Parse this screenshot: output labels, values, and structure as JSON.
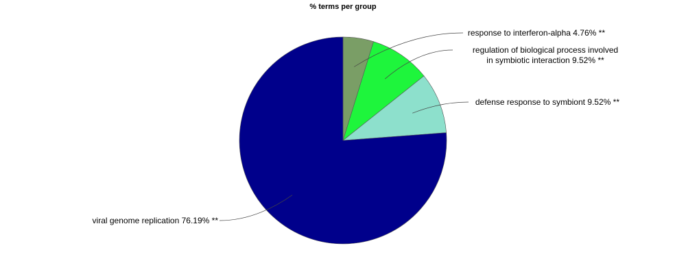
{
  "chart_data": {
    "type": "pie",
    "title": "% terms per group",
    "start_angle_deg": 90,
    "direction": "clockwise",
    "slices": [
      {
        "label_lines": [
          "response to interferon-alpha 4.76% **"
        ],
        "value": 4.76,
        "color": "#7a9e66"
      },
      {
        "label_lines": [
          "regulation of biological process involved",
          "in symbiotic interaction 9.52% **"
        ],
        "value": 9.52,
        "color": "#1ef53c"
      },
      {
        "label_lines": [
          "defense response to symbiont 9.52% **"
        ],
        "value": 9.52,
        "color": "#8de0cc"
      },
      {
        "label_lines": [
          "viral genome replication 76.19% **"
        ],
        "value": 76.19,
        "color": "#00008b"
      }
    ]
  }
}
